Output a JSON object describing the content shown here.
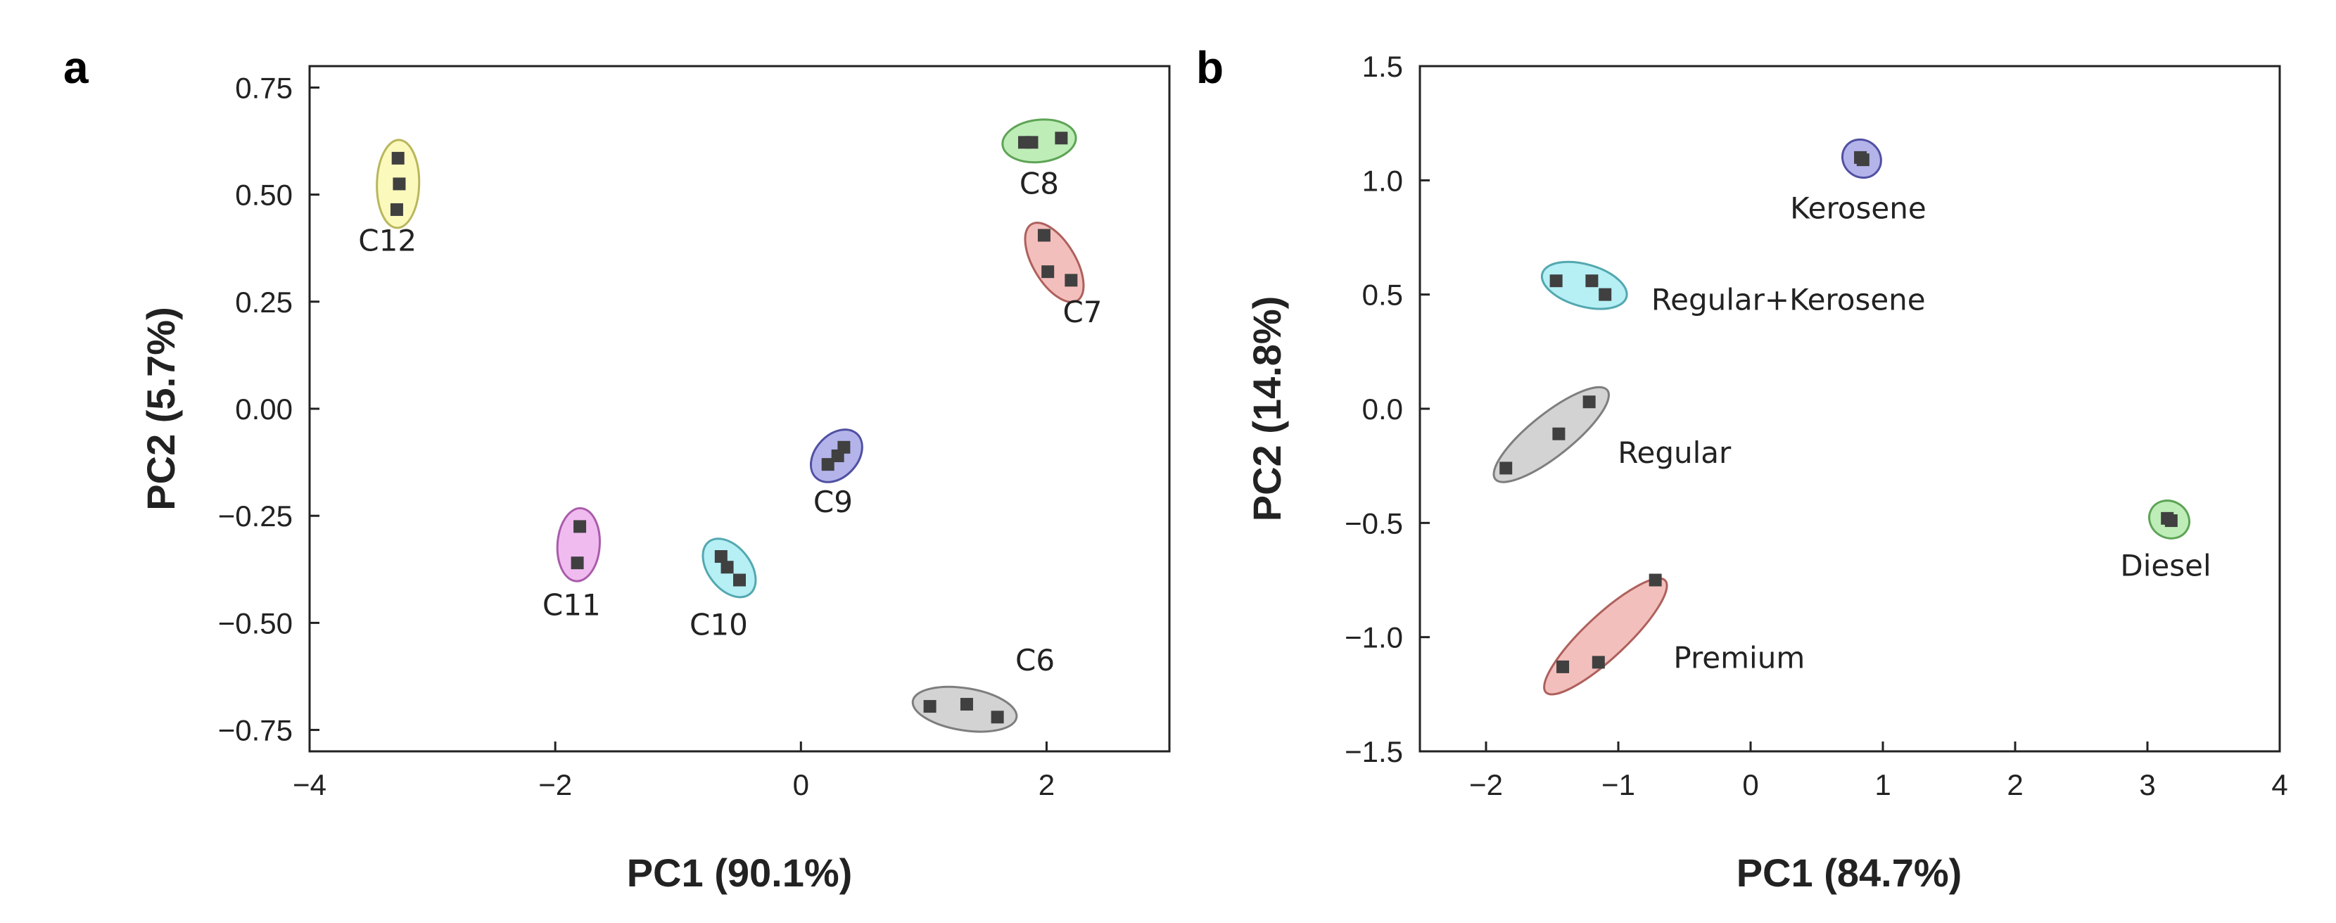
{
  "chart_data": [
    {
      "panel": "a",
      "type": "scatter",
      "xlabel": "PC1 (90.1%)",
      "ylabel": "PC2 (5.7%)",
      "xlim": [
        -4,
        3
      ],
      "ylim": [
        -0.8,
        0.8
      ],
      "xticks": [
        -4,
        -2,
        0,
        2
      ],
      "xtick_labels": [
        "−4",
        "−2",
        "0",
        "2"
      ],
      "yticks": [
        0.75,
        0.5,
        0.25,
        0.0,
        -0.25,
        -0.5,
        -0.75
      ],
      "ytick_labels": [
        "0.75",
        "0.50",
        "0.25",
        "0.00",
        "−0.25",
        "−0.50",
        "−0.75"
      ],
      "groups": [
        {
          "label": "C12",
          "color": "#f7f47a",
          "points": [
            [
              -3.28,
              0.585
            ],
            [
              -3.27,
              0.525
            ],
            [
              -3.29,
              0.465
            ]
          ]
        },
        {
          "label": "C8",
          "color": "#7ddb72",
          "points": [
            [
              1.82,
              0.622
            ],
            [
              1.88,
              0.622
            ],
            [
              2.12,
              0.632
            ]
          ]
        },
        {
          "label": "C7",
          "color": "#e8807a",
          "points": [
            [
              1.98,
              0.405
            ],
            [
              2.01,
              0.32
            ],
            [
              2.2,
              0.3
            ]
          ]
        },
        {
          "label": "C9",
          "color": "#6a6ad8",
          "points": [
            [
              0.35,
              -0.09
            ],
            [
              0.3,
              -0.11
            ],
            [
              0.22,
              -0.13
            ]
          ]
        },
        {
          "label": "C11",
          "color": "#e27ae2",
          "points": [
            [
              -1.8,
              -0.275
            ],
            [
              -1.82,
              -0.36
            ]
          ]
        },
        {
          "label": "C10",
          "color": "#6ee0ea",
          "points": [
            [
              -0.65,
              -0.345
            ],
            [
              -0.6,
              -0.37
            ],
            [
              -0.5,
              -0.4
            ]
          ]
        },
        {
          "label": "C6",
          "color": "#a8a8a8",
          "points": [
            [
              1.05,
              -0.695
            ],
            [
              1.35,
              -0.69
            ],
            [
              1.6,
              -0.72
            ]
          ]
        }
      ]
    },
    {
      "panel": "b",
      "type": "scatter",
      "xlabel": "PC1 (84.7%)",
      "ylabel": "PC2 (14.8%)",
      "xlim": [
        -2.5,
        4
      ],
      "ylim": [
        -1.5,
        1.5
      ],
      "xticks": [
        -2,
        -1,
        0,
        1,
        2,
        3,
        4
      ],
      "xtick_labels": [
        "−2",
        "−1",
        "0",
        "1",
        "2",
        "3",
        "4"
      ],
      "yticks": [
        1.5,
        1.0,
        0.5,
        0.0,
        -0.5,
        -1.0,
        -1.5
      ],
      "ytick_labels": [
        "1.5",
        "1.0",
        "0.5",
        "0.0",
        "−0.5",
        "−1.0",
        "−1.5"
      ],
      "groups": [
        {
          "label": "Kerosene",
          "color": "#6a6ad8",
          "points": [
            [
              0.83,
              1.1
            ],
            [
              0.85,
              1.09
            ]
          ]
        },
        {
          "label": "Regular+Kerosene",
          "color": "#6ee0ea",
          "points": [
            [
              -1.47,
              0.56
            ],
            [
              -1.2,
              0.56
            ],
            [
              -1.1,
              0.5
            ]
          ]
        },
        {
          "label": "Regular",
          "color": "#a8a8a8",
          "points": [
            [
              -1.22,
              0.03
            ],
            [
              -1.45,
              -0.11
            ],
            [
              -1.85,
              -0.26
            ]
          ]
        },
        {
          "label": "Diesel",
          "color": "#7ddb72",
          "points": [
            [
              3.15,
              -0.48
            ],
            [
              3.18,
              -0.49
            ]
          ]
        },
        {
          "label": "Premium",
          "color": "#e8807a",
          "points": [
            [
              -0.72,
              -0.75
            ],
            [
              -1.42,
              -1.13
            ],
            [
              -1.15,
              -1.11
            ]
          ]
        }
      ]
    }
  ]
}
